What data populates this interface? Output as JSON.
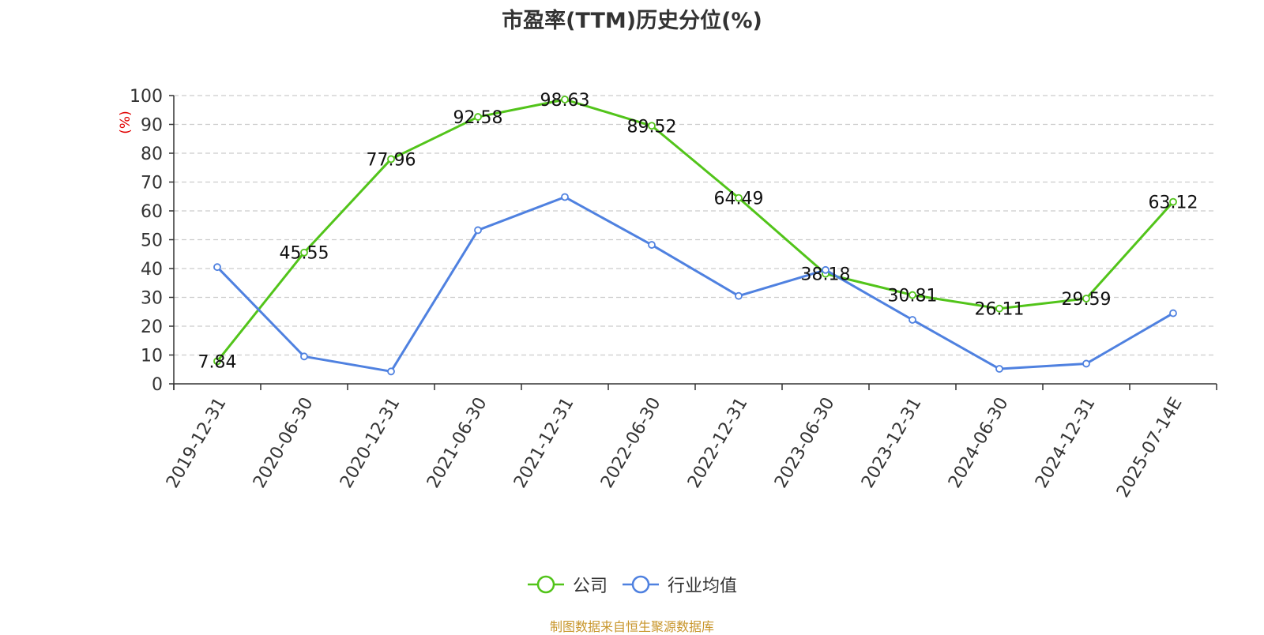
{
  "chart_data": {
    "type": "line",
    "title": "市盈率(TTM)历史分位(%)",
    "ylabel": "(%)",
    "ylim": [
      0,
      100
    ],
    "yticks": [
      0,
      10,
      20,
      30,
      40,
      50,
      60,
      70,
      80,
      90,
      100
    ],
    "categories": [
      "2019-12-31",
      "2020-06-30",
      "2020-12-31",
      "2021-06-30",
      "2021-12-31",
      "2022-06-30",
      "2022-12-31",
      "2023-06-30",
      "2023-12-31",
      "2024-06-30",
      "2024-12-31",
      "2025-07-14E"
    ],
    "grid": true,
    "legend_position": "bottom-center",
    "series": [
      {
        "name": "公司",
        "color": "#52c41a",
        "values": [
          7.84,
          45.55,
          77.96,
          92.58,
          98.63,
          89.52,
          64.49,
          38.18,
          30.81,
          26.11,
          29.59,
          63.12
        ],
        "labels": [
          "7.84",
          "45.55",
          "77.96",
          "92.58",
          "98.63",
          "89.52",
          "64.49",
          "38.18",
          "30.81",
          "26.11",
          "29.59",
          "63.12"
        ]
      },
      {
        "name": "行业均值",
        "color": "#4f81e0",
        "values": [
          40.5,
          9.5,
          4.3,
          53.3,
          64.8,
          48.2,
          30.5,
          39.5,
          22.2,
          5.2,
          7.0,
          24.5
        ]
      }
    ]
  },
  "source_note": "制图数据来自恒生聚源数据库"
}
